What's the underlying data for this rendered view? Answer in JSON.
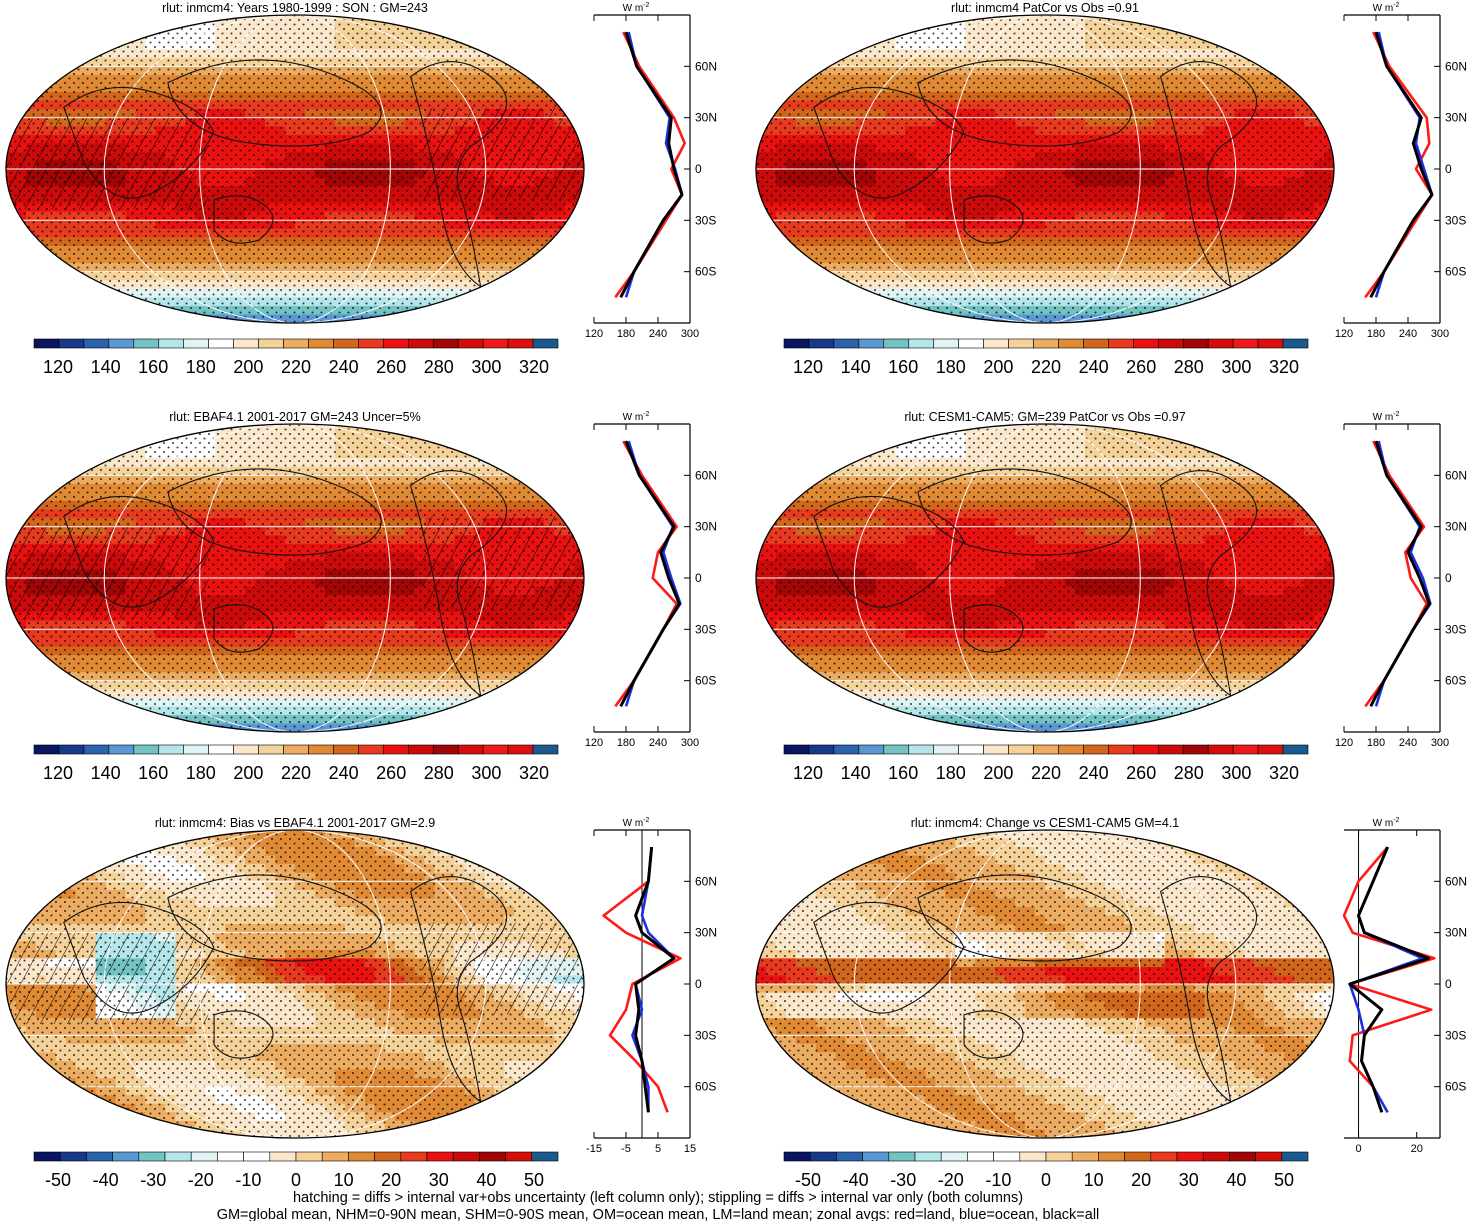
{
  "colormaps": {
    "absolute": [
      "#0a1560",
      "#16398c",
      "#2c63ad",
      "#5a98d4",
      "#73c3c3",
      "#b5e6ea",
      "#e2f3f4",
      "#ffffff",
      "#fbe8cc",
      "#f5d29a",
      "#ecad63",
      "#e08a35",
      "#d2661c",
      "#e83a1e",
      "#ea1111",
      "#cc0a0a",
      "#a10505",
      "#d40c0c",
      "#ee1a1a",
      "#dd1010",
      "#1a5a8f"
    ],
    "bias": [
      "#0a1560",
      "#16398c",
      "#2c63ad",
      "#5a98d4",
      "#73c3c3",
      "#b5e6ea",
      "#e2f3f4",
      "#ffffff",
      "#ffffff",
      "#fbe8cc",
      "#f5d29a",
      "#ecad63",
      "#e08a35",
      "#d2661c",
      "#e83a1e",
      "#ea1111",
      "#cc0a0a",
      "#a10505",
      "#d40c0c",
      "#1a5a8f"
    ],
    "absolute_labels": [
      "120",
      "140",
      "160",
      "180",
      "200",
      "220",
      "240",
      "260",
      "280",
      "300",
      "320"
    ],
    "bias_labels": [
      "-50",
      "-40",
      "-30",
      "-20",
      "-10",
      "0",
      "10",
      "20",
      "30",
      "40",
      "50"
    ]
  },
  "line_colors": {
    "land": "#ff1a1a",
    "ocean": "#1f2fe0",
    "all": "#000000"
  },
  "panels": [
    {
      "title": "rlut: inmcm4: Years 1980-1999 : SON : GM=243",
      "cmap": "absolute",
      "hatched": true,
      "field": "abs",
      "zonal": {
        "ticks": [
          "120",
          "180",
          "240",
          "300"
        ],
        "xmin": 120,
        "xmax": 300,
        "zero_line": false
      }
    },
    {
      "title": "rlut: inmcm4 PatCor vs Obs =0.91",
      "cmap": "absolute",
      "hatched": false,
      "field": "abs",
      "zonal": {
        "ticks": [
          "120",
          "180",
          "240",
          "300"
        ],
        "xmin": 120,
        "xmax": 300,
        "zero_line": false
      }
    },
    {
      "title": "rlut: EBAF4.1 2001-2017 GM=243 Uncer=5%",
      "cmap": "absolute",
      "hatched": true,
      "field": "abs",
      "zonal": {
        "ticks": [
          "120",
          "180",
          "240",
          "300"
        ],
        "xmin": 120,
        "xmax": 300,
        "zero_line": false
      }
    },
    {
      "title": "rlut: CESM1-CAM5: GM=239 PatCor vs Obs =0.97",
      "cmap": "absolute",
      "hatched": false,
      "field": "abs",
      "zonal": {
        "ticks": [
          "120",
          "180",
          "240",
          "300"
        ],
        "xmin": 120,
        "xmax": 300,
        "zero_line": false
      }
    },
    {
      "title": "rlut: inmcm4: Bias vs EBAF4.1 2001-2017  GM=2.9",
      "cmap": "bias",
      "hatched": true,
      "field": "bias",
      "zonal": {
        "ticks": [
          "-15",
          "-5",
          "5",
          "15"
        ],
        "xmin": -15,
        "xmax": 15,
        "zero_line": true
      }
    },
    {
      "title": "rlut: inmcm4: Change vs CESM1-CAM5 GM=4.1",
      "cmap": "bias",
      "hatched": false,
      "field": "change",
      "zonal": {
        "ticks": [
          "0",
          "20"
        ],
        "xmin": -5,
        "xmax": 28,
        "zero_line": true
      }
    }
  ],
  "zonal_unit": "W m",
  "zonal_unit_sup": "-2",
  "lat_labels": [
    "60N",
    "30N",
    "0",
    "30S",
    "60S"
  ],
  "footer": {
    "line1": "hatching = diffs > internal var+obs uncertainty (left column only); stippling = diffs > internal var only (both columns)",
    "line2": "GM=global mean, NHM=0-90N mean, SHM=0-90S mean, OM=ocean mean, LM=land mean; zonal avgs: red=land, blue=ocean, black=all"
  },
  "chart_data": [
    {
      "type": "heatmap",
      "title": "rlut: inmcm4: Years 1980-1999 : SON : GM=243",
      "colorbar_ticks": [
        120,
        140,
        160,
        180,
        200,
        220,
        240,
        260,
        280,
        300,
        320
      ],
      "zonal_mean": {
        "lat": [
          80,
          60,
          30,
          15,
          0,
          -15,
          -30,
          -60,
          -75
        ],
        "all": [
          180,
          200,
          265,
          260,
          270,
          285,
          250,
          195,
          170
        ],
        "land": [
          175,
          205,
          270,
          290,
          265,
          285,
          255,
          195,
          160
        ],
        "ocean": [
          185,
          200,
          262,
          255,
          272,
          285,
          250,
          195,
          180
        ],
        "xlim": [
          120,
          300
        ]
      }
    },
    {
      "type": "heatmap",
      "title": "rlut: inmcm4 PatCor vs Obs =0.91",
      "colorbar_ticks": [
        120,
        140,
        160,
        180,
        200,
        220,
        240,
        260,
        280,
        300,
        320
      ],
      "zonal_mean": {
        "lat": [
          80,
          60,
          30,
          15,
          0,
          -15,
          -30,
          -60,
          -75
        ],
        "all": [
          180,
          200,
          265,
          250,
          265,
          285,
          250,
          195,
          170
        ],
        "land": [
          175,
          205,
          275,
          280,
          255,
          285,
          255,
          195,
          160
        ],
        "ocean": [
          185,
          200,
          262,
          255,
          270,
          285,
          250,
          195,
          180
        ],
        "xlim": [
          120,
          300
        ]
      }
    },
    {
      "type": "heatmap",
      "title": "rlut: EBAF4.1 2001-2017 GM=243 Uncer=5%",
      "colorbar_ticks": [
        120,
        140,
        160,
        180,
        200,
        220,
        240,
        260,
        280,
        300,
        320
      ],
      "zonal_mean": {
        "lat": [
          80,
          60,
          30,
          15,
          0,
          -15,
          -30,
          -60,
          -75
        ],
        "all": [
          180,
          205,
          270,
          245,
          260,
          280,
          250,
          195,
          170
        ],
        "land": [
          175,
          210,
          275,
          240,
          230,
          275,
          250,
          195,
          160
        ],
        "ocean": [
          185,
          205,
          268,
          250,
          265,
          282,
          250,
          195,
          180
        ],
        "xlim": [
          120,
          300
        ]
      }
    },
    {
      "type": "heatmap",
      "title": "rlut: CESM1-CAM5: GM=239 PatCor vs Obs =0.97",
      "colorbar_ticks": [
        120,
        140,
        160,
        180,
        200,
        220,
        240,
        260,
        280,
        300,
        320
      ],
      "zonal_mean": {
        "lat": [
          80,
          60,
          30,
          15,
          0,
          -15,
          -30,
          -60,
          -75
        ],
        "all": [
          180,
          200,
          265,
          240,
          262,
          280,
          250,
          195,
          170
        ],
        "land": [
          175,
          205,
          270,
          235,
          245,
          275,
          250,
          195,
          160
        ],
        "ocean": [
          185,
          200,
          262,
          245,
          268,
          282,
          250,
          195,
          180
        ],
        "xlim": [
          120,
          300
        ]
      }
    },
    {
      "type": "heatmap",
      "title": "rlut: inmcm4: Bias vs EBAF4.1 2001-2017  GM=2.9",
      "colorbar_ticks": [
        -50,
        -40,
        -30,
        -20,
        -10,
        0,
        10,
        20,
        30,
        40,
        50
      ],
      "zonal_mean": {
        "lat": [
          80,
          60,
          40,
          30,
          15,
          0,
          -15,
          -30,
          -45,
          -60,
          -75
        ],
        "all": [
          3,
          2,
          -2,
          0,
          10,
          -2,
          -1,
          -2,
          0,
          1,
          2
        ],
        "land": [
          3,
          2,
          -12,
          -5,
          12,
          -3,
          -5,
          -10,
          -2,
          5,
          8
        ],
        "ocean": [
          3,
          2,
          0,
          2,
          10,
          -2,
          0,
          -3,
          0,
          2,
          2
        ],
        "xlim": [
          -15,
          15
        ]
      }
    },
    {
      "type": "heatmap",
      "title": "rlut: inmcm4: Change vs CESM1-CAM5 GM=4.1",
      "colorbar_ticks": [
        -50,
        -40,
        -30,
        -20,
        -10,
        0,
        10,
        20,
        30,
        40,
        50
      ],
      "zonal_mean": {
        "lat": [
          80,
          60,
          40,
          30,
          15,
          0,
          -15,
          -30,
          -45,
          -60,
          -75
        ],
        "all": [
          10,
          5,
          0,
          2,
          24,
          -3,
          8,
          2,
          1,
          5,
          8
        ],
        "land": [
          10,
          0,
          -5,
          -2,
          26,
          -3,
          25,
          -2,
          -3,
          5,
          8
        ],
        "ocean": [
          10,
          5,
          0,
          2,
          22,
          -3,
          0,
          2,
          1,
          5,
          10
        ],
        "xlim": [
          -5,
          28
        ]
      }
    }
  ]
}
